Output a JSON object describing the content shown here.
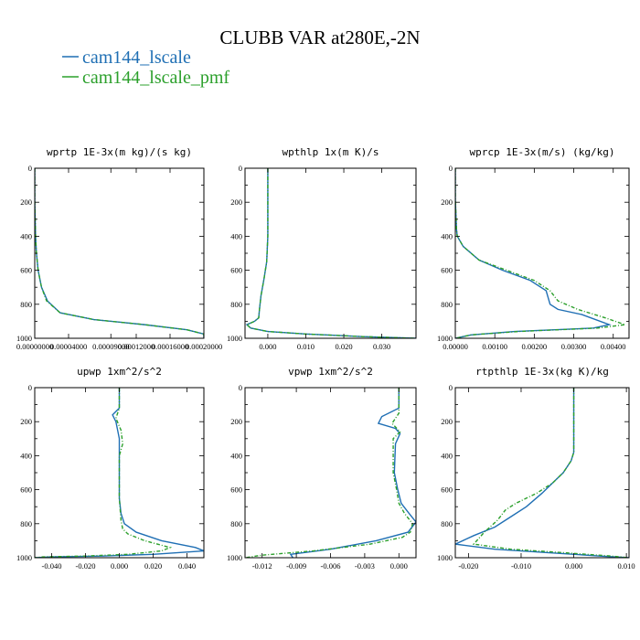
{
  "figure": {
    "title": "CLUBB VAR at280E,-2N",
    "legend": [
      {
        "label": "cam144_lscale",
        "color": "#1f6fb4"
      },
      {
        "label": "cam144_lscale_pmf",
        "color": "#2ca02c"
      }
    ]
  },
  "chart_data": [
    {
      "type": "line",
      "title": "wprtp  1E-3x(m kg)/(s kg)",
      "xlim": [
        0.0,
        0.0002
      ],
      "ylim": [
        1000,
        0
      ],
      "yticks": [
        "0",
        "200",
        "400",
        "600",
        "800",
        "1000"
      ],
      "xticks": [
        "0.00000000",
        "0.00004000",
        "0.00009000",
        "0.00012000",
        "0.00016000",
        "0.00020000"
      ],
      "xtick_values": [
        0.0,
        4e-05,
        9e-05,
        0.00012,
        0.00016,
        0.0002
      ],
      "series": [
        {
          "name": "cam144_lscale",
          "x": [
            0.0,
            0.0,
            1e-06,
            2e-06,
            4e-06,
            8e-06,
            1.5e-05,
            3e-05,
            7e-05,
            0.00013,
            0.00018,
            0.0002,
            0.0002
          ],
          "y": [
            0,
            200,
            400,
            500,
            600,
            700,
            780,
            850,
            890,
            920,
            950,
            975,
            1000
          ]
        },
        {
          "name": "cam144_lscale_pmf",
          "x": [
            0.0,
            0.0,
            1e-06,
            2e-06,
            4e-06,
            8e-06,
            1.4e-05,
            3e-05,
            7e-05,
            0.00013,
            0.00018,
            0.0002,
            0.0002
          ],
          "y": [
            0,
            200,
            400,
            500,
            600,
            700,
            780,
            850,
            890,
            920,
            950,
            975,
            1000
          ]
        }
      ]
    },
    {
      "type": "line",
      "title": "wpthlp  1x(m K)/s",
      "xlim": [
        -0.006,
        0.039
      ],
      "ylim": [
        1000,
        0
      ],
      "yticks": [
        "0",
        "200",
        "400",
        "600",
        "800",
        "1000"
      ],
      "xticks": [
        "0.000",
        "0.010",
        "0.020",
        "0.030"
      ],
      "xtick_values": [
        0.0,
        0.01,
        0.02,
        0.03
      ],
      "series": [
        {
          "name": "cam144_lscale",
          "x": [
            0.0,
            0.0,
            0.0,
            -0.0003,
            -0.001,
            -0.0018,
            -0.0022,
            -0.0024,
            -0.0035,
            -0.0055,
            -0.0045,
            0.0,
            0.01,
            0.025,
            0.039
          ],
          "y": [
            0,
            170,
            400,
            550,
            650,
            750,
            830,
            880,
            900,
            920,
            940,
            960,
            975,
            990,
            1000
          ]
        },
        {
          "name": "cam144_lscale_pmf",
          "x": [
            0.0,
            0.0,
            0.0,
            -0.0003,
            -0.001,
            -0.0018,
            -0.0022,
            -0.0024,
            -0.0035,
            -0.0055,
            -0.0045,
            0.0,
            0.01,
            0.025,
            0.039
          ],
          "y": [
            0,
            170,
            400,
            550,
            650,
            750,
            830,
            880,
            900,
            920,
            940,
            960,
            975,
            990,
            1000
          ]
        }
      ]
    },
    {
      "type": "line",
      "title": "wprcp  1E-3x(m/s) (kg/kg)",
      "xlim": [
        0.0,
        0.0044
      ],
      "ylim": [
        1000,
        0
      ],
      "yticks": [
        "0",
        "200",
        "400",
        "600",
        "800",
        "1000"
      ],
      "xticks": [
        "0.00000",
        "0.00100",
        "0.00200",
        "0.00300",
        "0.00400"
      ],
      "xtick_values": [
        0.0,
        0.001,
        0.002,
        0.003,
        0.004
      ],
      "series": [
        {
          "name": "cam144_lscale",
          "x": [
            0.0,
            0.0,
            2e-05,
            3e-05,
            5e-05,
            0.0002,
            0.0006,
            0.0012,
            0.0019,
            0.0023,
            0.0024,
            0.0026,
            0.0032,
            0.0039,
            0.0035,
            0.0015,
            0.0004,
            0.0
          ],
          "y": [
            0,
            180,
            300,
            360,
            400,
            460,
            540,
            600,
            660,
            720,
            800,
            830,
            860,
            920,
            940,
            960,
            980,
            1000
          ]
        },
        {
          "name": "cam144_lscale_pmf",
          "x": [
            0.0,
            0.0,
            2e-05,
            3e-05,
            5e-05,
            0.0002,
            0.0006,
            0.0013,
            0.002,
            0.0024,
            0.0026,
            0.0031,
            0.0038,
            0.0043,
            0.0036,
            0.0016,
            0.0004,
            0.0
          ],
          "y": [
            0,
            180,
            300,
            360,
            400,
            460,
            540,
            600,
            660,
            720,
            780,
            830,
            880,
            920,
            940,
            960,
            980,
            1000
          ]
        }
      ]
    },
    {
      "type": "line",
      "title": "upwp  1xm^2/s^2",
      "xlim": [
        -0.05,
        0.05
      ],
      "ylim": [
        1000,
        0
      ],
      "yticks": [
        "0",
        "200",
        "400",
        "600",
        "800",
        "1000"
      ],
      "xticks": [
        "-0.040",
        "-0.020",
        "0.000",
        "0.020",
        "0.040"
      ],
      "xtick_values": [
        -0.04,
        -0.02,
        0.0,
        0.02,
        0.04
      ],
      "series": [
        {
          "name": "cam144_lscale",
          "x": [
            0.0,
            0.0,
            -0.004,
            -0.002,
            0.0,
            0.0,
            0.0,
            0.001,
            0.003,
            0.01,
            0.025,
            0.045,
            0.05,
            0.02,
            -0.01,
            -0.04,
            -0.05
          ],
          "y": [
            0,
            120,
            160,
            200,
            300,
            500,
            650,
            740,
            800,
            850,
            900,
            940,
            960,
            980,
            990,
            995,
            1000
          ]
        },
        {
          "name": "cam144_lscale_pmf",
          "x": [
            0.0,
            0.0,
            -0.002,
            0.001,
            0.002,
            0.0,
            0.0,
            0.001,
            0.002,
            0.005,
            0.015,
            0.03,
            0.025,
            0.005,
            -0.02,
            -0.045,
            -0.05
          ],
          "y": [
            0,
            120,
            180,
            250,
            330,
            400,
            650,
            780,
            830,
            860,
            900,
            940,
            960,
            980,
            990,
            995,
            1000
          ]
        }
      ]
    },
    {
      "type": "line",
      "title": "vpwp  1xm^2/s^2",
      "xlim": [
        -0.0135,
        0.0015
      ],
      "ylim": [
        1000,
        0
      ],
      "yticks": [
        "0",
        "200",
        "400",
        "600",
        "800",
        "1000"
      ],
      "xticks": [
        "-0.012",
        "-0.009",
        "-0.006",
        "-0.003",
        "0.000"
      ],
      "xtick_values": [
        -0.012,
        -0.009,
        -0.006,
        -0.003,
        0.0
      ],
      "series": [
        {
          "name": "cam144_lscale",
          "x": [
            0.0,
            0.0,
            -0.0015,
            -0.0018,
            -0.0003,
            0.0001,
            -0.0003,
            -0.0004,
            -0.0001,
            0.0002,
            0.0009,
            0.0015,
            0.0008,
            -0.002,
            -0.006,
            -0.0095,
            -0.0093
          ],
          "y": [
            0,
            120,
            170,
            210,
            240,
            270,
            330,
            500,
            600,
            680,
            740,
            790,
            850,
            900,
            950,
            980,
            1000
          ]
        },
        {
          "name": "cam144_lscale_pmf",
          "x": [
            0.0,
            0.0,
            -0.0006,
            0.0001,
            -0.0005,
            -0.0005,
            -0.0002,
            0.0,
            0.0005,
            0.0012,
            0.001,
            0.0003,
            -0.0025,
            -0.0075,
            -0.012,
            -0.0135
          ],
          "y": [
            0,
            150,
            210,
            260,
            300,
            500,
            600,
            680,
            740,
            800,
            850,
            880,
            920,
            960,
            985,
            1000
          ]
        }
      ]
    },
    {
      "type": "line",
      "title": "rtpthlp  1E-3x(kg K)/kg",
      "xlim": [
        -0.0225,
        0.0105
      ],
      "ylim": [
        1000,
        0
      ],
      "yticks": [
        "0",
        "200",
        "400",
        "600",
        "800",
        "1000"
      ],
      "xticks": [
        "-0.020",
        "-0.010",
        "0.000",
        "0.010"
      ],
      "xtick_values": [
        -0.02,
        -0.01,
        0.0,
        0.01
      ],
      "series": [
        {
          "name": "cam144_lscale",
          "x": [
            0.0,
            0.0,
            0.0,
            -0.0005,
            -0.002,
            -0.004,
            -0.006,
            -0.009,
            -0.012,
            -0.015,
            -0.019,
            -0.0225,
            -0.015,
            -0.005,
            0.005,
            0.0105
          ],
          "y": [
            0,
            250,
            380,
            430,
            500,
            560,
            620,
            700,
            760,
            820,
            870,
            920,
            950,
            970,
            990,
            1000
          ]
        },
        {
          "name": "cam144_lscale_pmf",
          "x": [
            0.0,
            0.0,
            0.0,
            -0.0005,
            -0.002,
            -0.004,
            -0.007,
            -0.011,
            -0.013,
            -0.0145,
            -0.017,
            -0.019,
            -0.012,
            -0.002,
            0.007,
            0.0105
          ],
          "y": [
            0,
            250,
            380,
            430,
            500,
            560,
            620,
            680,
            720,
            780,
            850,
            920,
            950,
            970,
            990,
            1000
          ]
        }
      ]
    }
  ]
}
